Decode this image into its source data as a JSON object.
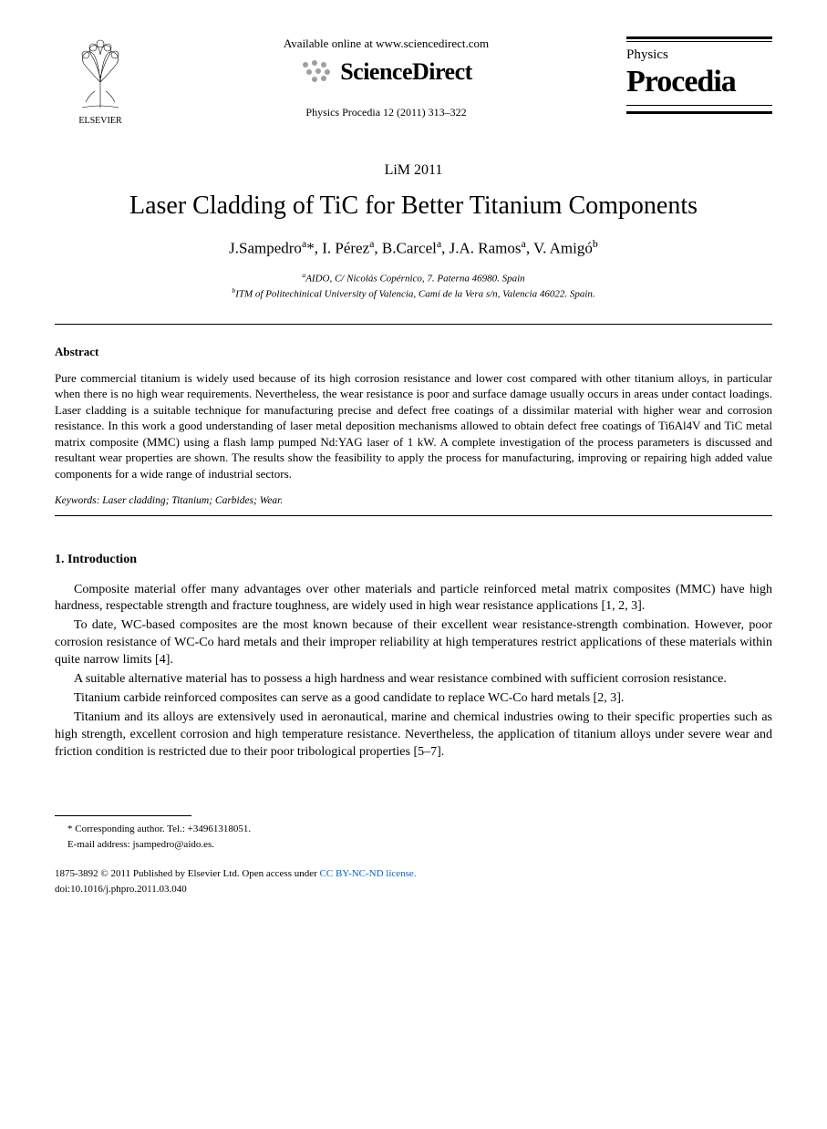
{
  "header": {
    "elsevier_label": "ELSEVIER",
    "available_online": "Available online at www.sciencedirect.com",
    "sciencedirect": "ScienceDirect",
    "citation": "Physics Procedia 12 (2011) 313–322",
    "journal_physics": "Physics",
    "journal_name": "Procedia"
  },
  "conference": "LiM 2011",
  "title": "Laser Cladding of TiC for Better Titanium Components",
  "authors_html": "J.Sampedro<sup>a</sup>*, I. Pérez<sup>a</sup>, B.Carcel<sup>a</sup>, J.A. Ramos<sup>a</sup>, V. Amigó<sup>b</sup>",
  "affiliations": {
    "a": "AIDO, C/ Nicolás Copérnico, 7. Paterna 46980. Spain",
    "b": "ITM of Politechinical University of Valencia, Camí de la Vera s/n, Valencia 46022. Spain."
  },
  "abstract_heading": "Abstract",
  "abstract_text": "Pure commercial  titanium is widely used because of its high corrosion resistance and lower cost compared with other titanium alloys, in particular when there is no high wear requirements. Nevertheless, the wear resistance is poor and surface damage usually occurs in areas under contact loadings. Laser cladding is a suitable technique for manufacturing precise and defect free coatings of a dissimilar material with higher wear and corrosion resistance. In this work a good understanding of laser metal deposition mechanisms allowed to obtain defect free coatings of Ti6Al4V and TiC metal matrix composite (MMC) using a flash lamp pumped Nd:YAG laser of 1 kW. A complete investigation of the process parameters is discussed and resultant wear properties are shown. The results show the feasibility to apply the process for manufacturing, improving or repairing high added value components for a wide range of industrial sectors.",
  "keywords": "Keywords: Laser cladding; Titanium; Carbides; Wear.",
  "section1_heading": "1. Introduction",
  "paragraphs": {
    "p1": "Composite material offer many advantages over other materials and particle reinforced metal matrix composites (MMC) have high hardness, respectable strength and fracture toughness, are widely used in high wear resistance applications [1, 2, 3].",
    "p2": "To date, WC-based composites are the most known because of their excellent wear resistance-strength combination. However, poor corrosion resistance of WC-Co hard metals and their improper reliability at high temperatures restrict applications of these materials within quite narrow limits [4].",
    "p3": "A suitable alternative material has to possess a high hardness and wear resistance combined with sufficient corrosion resistance.",
    "p4": "Titanium carbide reinforced composites can serve as a good candidate to replace WC-Co hard metals [2, 3].",
    "p5": "Titanium and its alloys are extensively used in aeronautical, marine and chemical industries owing to their specific properties such as high strength, excellent corrosion and high temperature resistance. Nevertheless, the application of titanium alloys under severe wear and friction condition is restricted due to their poor tribological properties [5–7]."
  },
  "footnote": {
    "corresponding": "* Corresponding author. Tel.: +34961318051.",
    "email_label": "E-mail address:",
    "email": "jsampedro@aido.es."
  },
  "footer": {
    "issn": "1875-3892 © 2011 Published by Elsevier Ltd.",
    "open_access": "Open access under",
    "license": "CC BY-NC-ND license.",
    "doi": "doi:10.1016/j.phpro.2011.03.040"
  },
  "colors": {
    "text": "#000000",
    "link": "#0066cc",
    "sd_dots": "#9e9e9e"
  }
}
